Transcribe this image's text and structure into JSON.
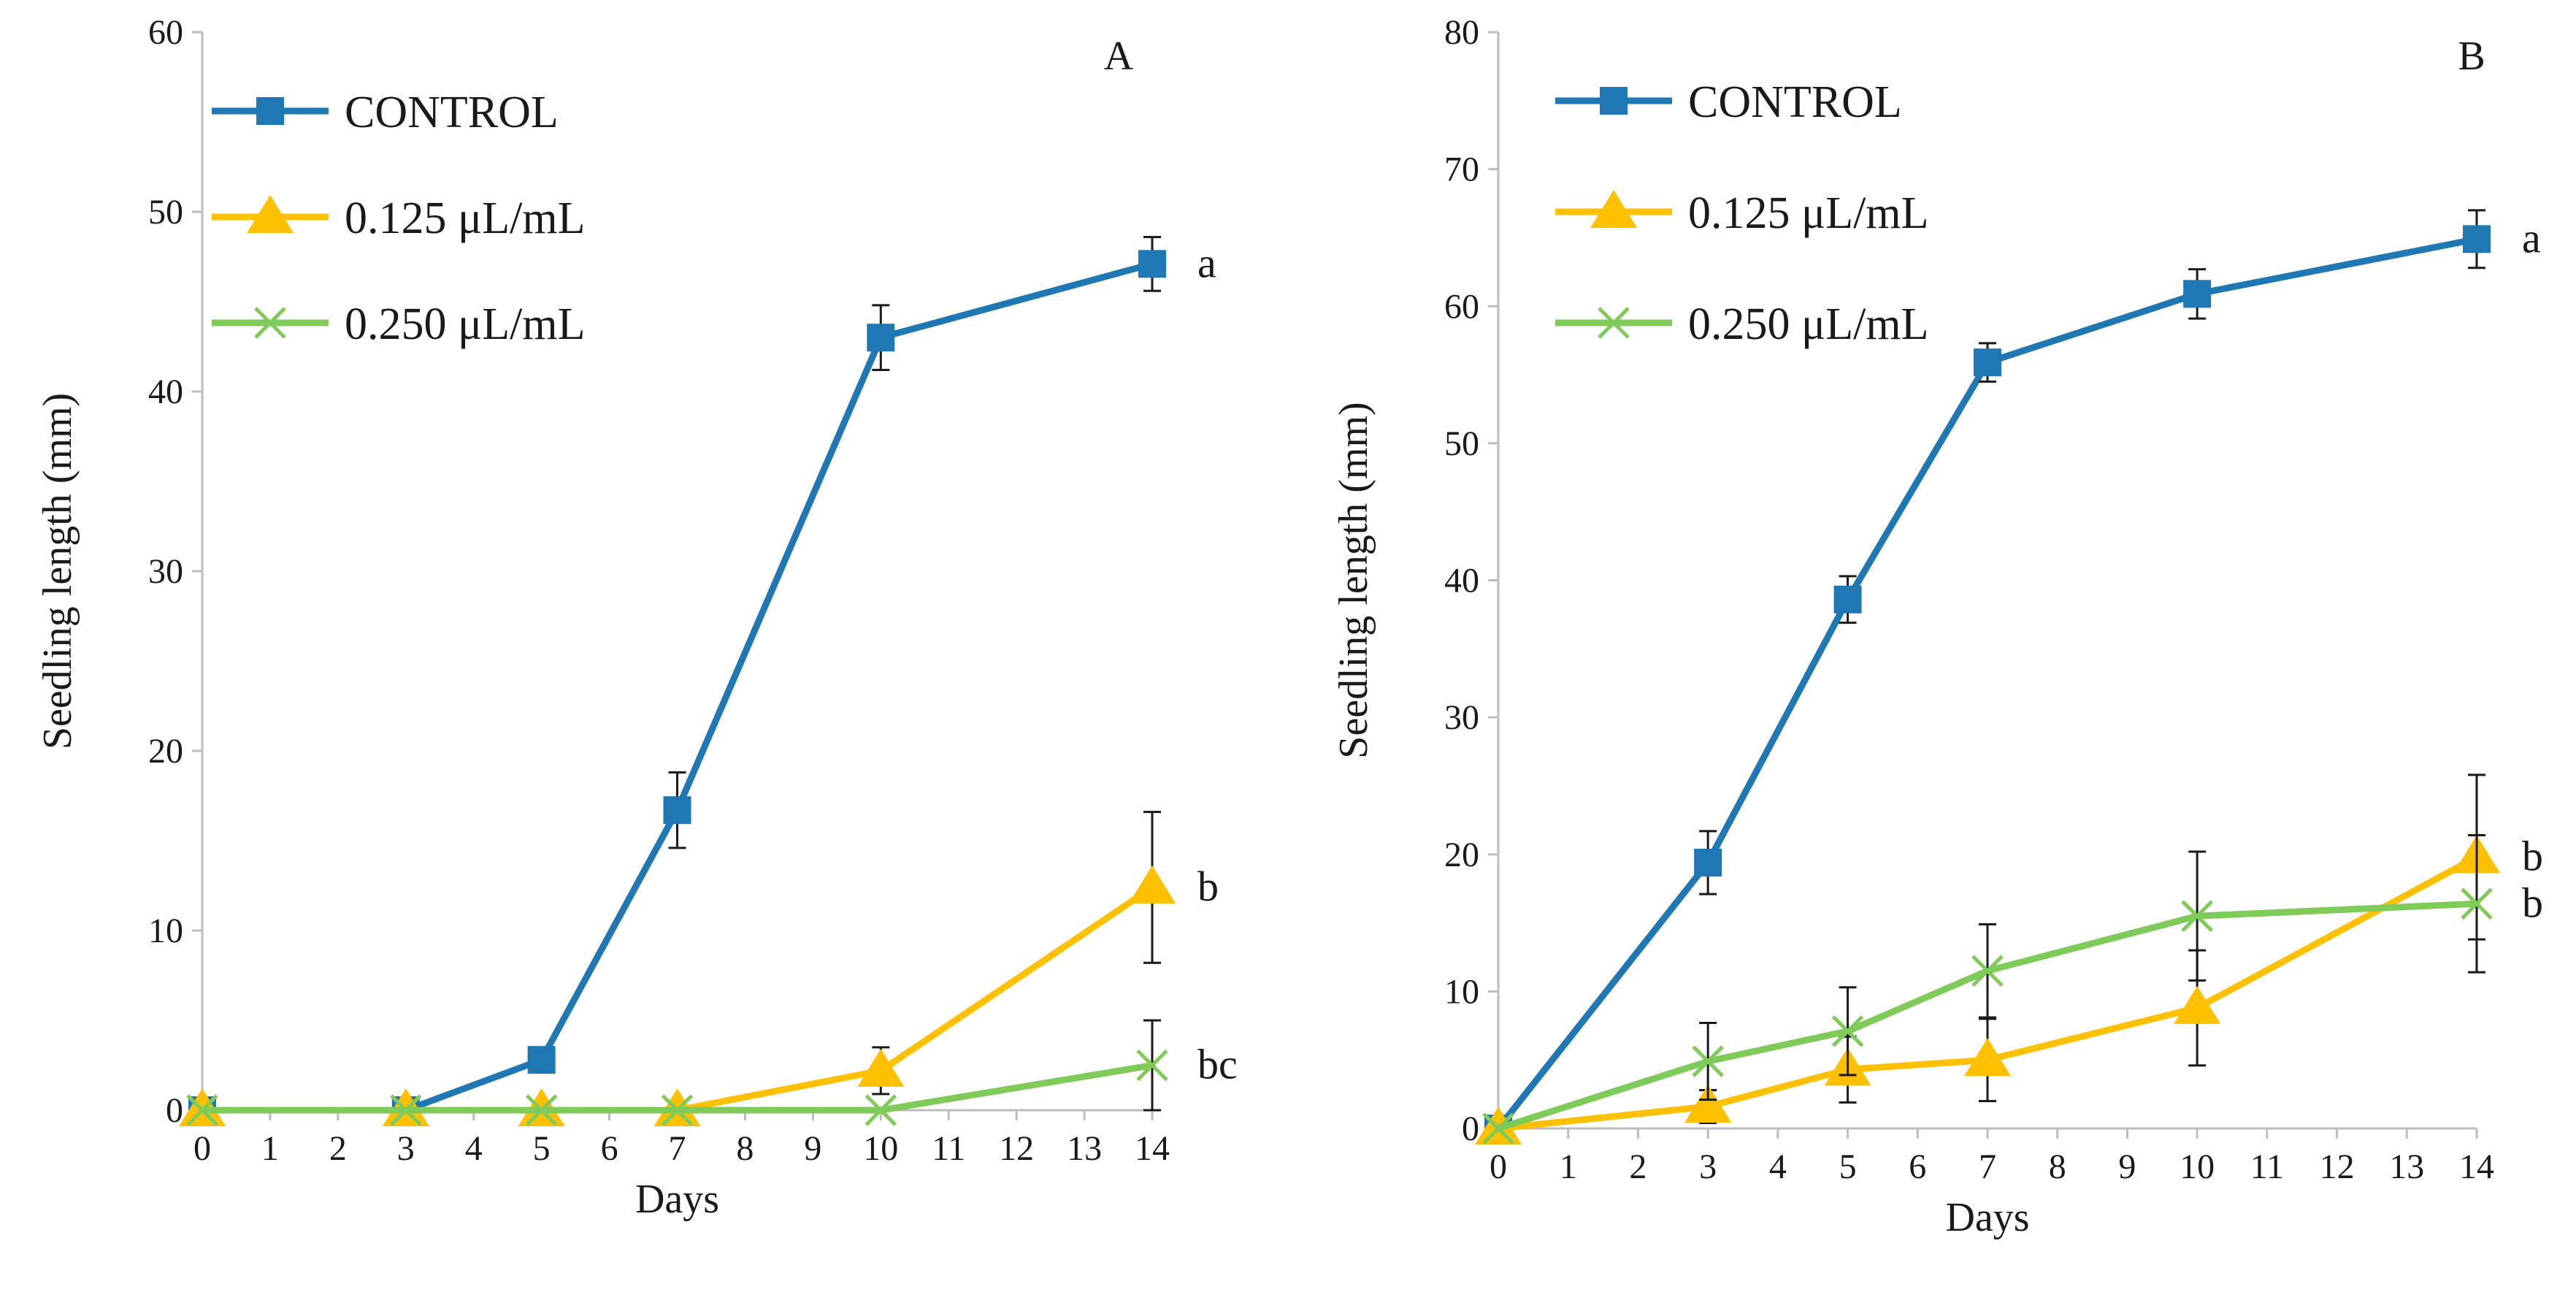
{
  "colors": {
    "control": "#1F77B4",
    "low": "#FFC000",
    "high": "#7FCB5A"
  },
  "chart_data": [
    {
      "type": "line",
      "panel_label": "A",
      "xlabel": "Days",
      "ylabel": "Seedling length (mm)",
      "xlim": [
        0,
        14
      ],
      "ylim": [
        0,
        60
      ],
      "x_ticks": [
        "0",
        "1",
        "2",
        "3",
        "4",
        "5",
        "6",
        "7",
        "8",
        "9",
        "10",
        "11",
        "12",
        "13",
        "14"
      ],
      "y_ticks": [
        "0",
        "10",
        "20",
        "30",
        "40",
        "50",
        "60"
      ],
      "legend": {
        "position": "top-left"
      },
      "series": [
        {
          "name": "CONTROL",
          "marker": "square",
          "color": "#1F77B4",
          "points": [
            {
              "x": 0,
              "y": 0
            },
            {
              "x": 3,
              "y": 0
            },
            {
              "x": 5,
              "y": 2.8
            },
            {
              "x": 7,
              "y": 16.7,
              "err": 2.1
            },
            {
              "x": 10,
              "y": 43,
              "err": 1.8
            },
            {
              "x": 14,
              "y": 47.1,
              "err": 1.5
            }
          ],
          "end_label": "a"
        },
        {
          "name": "0.125  μL/mL",
          "marker": "triangle",
          "color": "#FFC000",
          "points": [
            {
              "x": 0,
              "y": 0
            },
            {
              "x": 3,
              "y": 0
            },
            {
              "x": 5,
              "y": 0
            },
            {
              "x": 7,
              "y": 0
            },
            {
              "x": 10,
              "y": 2.2,
              "err": 1.3
            },
            {
              "x": 14,
              "y": 12.4,
              "err": 4.2
            }
          ],
          "end_label": "b"
        },
        {
          "name": "0.250  μL/mL",
          "marker": "x",
          "color": "#7FCB5A",
          "points": [
            {
              "x": 0,
              "y": 0
            },
            {
              "x": 3,
              "y": 0
            },
            {
              "x": 5,
              "y": 0
            },
            {
              "x": 7,
              "y": 0
            },
            {
              "x": 10,
              "y": 0
            },
            {
              "x": 14,
              "y": 2.5,
              "err": 2.5
            }
          ],
          "end_label": "bc"
        }
      ]
    },
    {
      "type": "line",
      "panel_label": "B",
      "xlabel": "Days",
      "ylabel": "Seedling length (mm)",
      "xlim": [
        0,
        14
      ],
      "ylim": [
        0,
        80
      ],
      "x_ticks": [
        "0",
        "1",
        "2",
        "3",
        "4",
        "5",
        "6",
        "7",
        "8",
        "9",
        "10",
        "11",
        "12",
        "13",
        "14"
      ],
      "y_ticks": [
        "0",
        "10",
        "20",
        "30",
        "40",
        "50",
        "60",
        "70",
        "80"
      ],
      "legend": {
        "position": "top-left"
      },
      "series": [
        {
          "name": "CONTROL",
          "marker": "square",
          "color": "#1F77B4",
          "points": [
            {
              "x": 0,
              "y": 0
            },
            {
              "x": 3,
              "y": 19.4,
              "err": 2.3
            },
            {
              "x": 5,
              "y": 38.6,
              "err": 1.7
            },
            {
              "x": 7,
              "y": 55.9,
              "err": 1.4
            },
            {
              "x": 10,
              "y": 60.9,
              "err": 1.8
            },
            {
              "x": 14,
              "y": 64.9,
              "err": 2.1
            }
          ],
          "end_label": "a"
        },
        {
          "name": "0.125  μL/mL",
          "marker": "triangle",
          "color": "#FFC000",
          "points": [
            {
              "x": 0,
              "y": 0
            },
            {
              "x": 3,
              "y": 1.6,
              "err": 1.2
            },
            {
              "x": 5,
              "y": 4.3,
              "err": 2.4
            },
            {
              "x": 7,
              "y": 5.0,
              "err": 3.0
            },
            {
              "x": 10,
              "y": 8.8,
              "err": 4.2
            },
            {
              "x": 14,
              "y": 19.8,
              "err": 6.0
            }
          ],
          "end_label": "b"
        },
        {
          "name": "0.250  μL/mL",
          "marker": "x",
          "color": "#7FCB5A",
          "points": [
            {
              "x": 0,
              "y": 0
            },
            {
              "x": 3,
              "y": 4.9,
              "err": 2.8
            },
            {
              "x": 5,
              "y": 7.1,
              "err": 3.2
            },
            {
              "x": 7,
              "y": 11.5,
              "err": 3.4
            },
            {
              "x": 10,
              "y": 15.5,
              "err": 4.7
            },
            {
              "x": 14,
              "y": 16.4,
              "err": 5.0
            }
          ],
          "end_label": "b"
        }
      ]
    }
  ]
}
